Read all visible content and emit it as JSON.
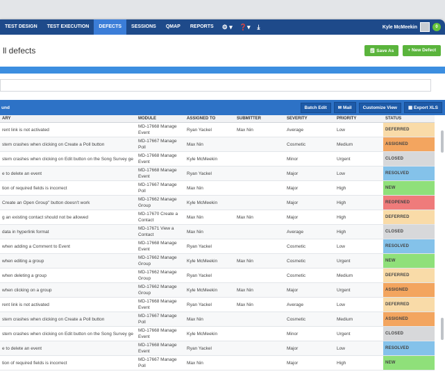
{
  "nav": {
    "items": [
      "TEST DESIGN",
      "TEST EXECUTION",
      "DEFECTS",
      "SESSIONS",
      "QMAP",
      "REPORTS"
    ],
    "active_index": 2,
    "user": "Kyle McMeekin",
    "notification_count": "0"
  },
  "page": {
    "title": "ll defects",
    "save_as": "Save As",
    "new_defect": "+  New Defect"
  },
  "toolbar": {
    "label": "und",
    "batch_edit": "Batch Edit",
    "mail": "Mail",
    "customize_view": "Customize View",
    "export_xls": "Export XLS"
  },
  "table": {
    "headers": [
      "ARY",
      "MODULE",
      "ASSIGNED TO",
      "SUBMITTER",
      "SEVERITY",
      "PRIORITY",
      "STATUS"
    ],
    "rows": [
      {
        "summary": "rent link is not activated",
        "module": "MD-17668 Manage Event",
        "assigned": "Ryan Yackel",
        "submitter": "Max Nin",
        "severity": "Average",
        "priority": "Low",
        "status": "DEFERRED"
      },
      {
        "summary": "stem crashes when clicking on Create a Poll button",
        "module": "MD-17667 Manage Poll",
        "assigned": "Max Nin",
        "submitter": "",
        "severity": "Cosmetic",
        "priority": "Medium",
        "status": "ASSIGNED"
      },
      {
        "summary": "stem crashes when clicking on Edit button on the Song Survey ge",
        "module": "MD-17668 Manage Event",
        "assigned": "Kyle McMeekin",
        "submitter": "",
        "severity": "Minor",
        "priority": "Urgent",
        "status": "CLOSED"
      },
      {
        "summary": "e to delete an event",
        "module": "MD-17668 Manage Event",
        "assigned": "Ryan Yackel",
        "submitter": "",
        "severity": "Major",
        "priority": "Low",
        "status": "RESOLVED"
      },
      {
        "summary": "tion of required fields is incorrect",
        "module": "MD-17667 Manage Poll",
        "assigned": "Max Nin",
        "submitter": "",
        "severity": "Major",
        "priority": "High",
        "status": "NEW"
      },
      {
        "summary": "Create an Open Group\" button doesn't work",
        "module": "MD-17662 Manage Group",
        "assigned": "Kyle McMeekin",
        "submitter": "",
        "severity": "Major",
        "priority": "High",
        "status": "REOPENED"
      },
      {
        "summary": "g an existing contact should not be allowed",
        "module": "MD-17670 Create a Contact",
        "assigned": "Max Nin",
        "submitter": "Max Nin",
        "severity": "Major",
        "priority": "High",
        "status": "DEFERRED"
      },
      {
        "summary": "data in hyperlink format",
        "module": "MD-17671 View a Contact",
        "assigned": "Max Nin",
        "submitter": "",
        "severity": "Average",
        "priority": "High",
        "status": "CLOSED"
      },
      {
        "summary": "when adding a Comment to Event",
        "module": "MD-17668 Manage Event",
        "assigned": "Ryan Yackel",
        "submitter": "",
        "severity": "Cosmetic",
        "priority": "Low",
        "status": "RESOLVED"
      },
      {
        "summary": "when editing a group",
        "module": "MD-17662 Manage Group",
        "assigned": "Kyle McMeekin",
        "submitter": "Max Nin",
        "severity": "Cosmetic",
        "priority": "Urgent",
        "status": "NEW"
      },
      {
        "summary": "when deleting a group",
        "module": "MD-17662 Manage Group",
        "assigned": "Ryan Yackel",
        "submitter": "",
        "severity": "Cosmetic",
        "priority": "Medium",
        "status": "DEFERRED"
      },
      {
        "summary": "when clicking on a group",
        "module": "MD-17662 Manage Group",
        "assigned": "Kyle McMeekin",
        "submitter": "Max Nin",
        "severity": "Major",
        "priority": "Urgent",
        "status": "ASSIGNED"
      },
      {
        "summary": "rent link is not activated",
        "module": "MD-17668 Manage Event",
        "assigned": "Ryan Yackel",
        "submitter": "Max Nin",
        "severity": "Average",
        "priority": "Low",
        "status": "DEFERRED"
      },
      {
        "summary": "stem crashes when clicking on Create a Poll button",
        "module": "MD-17667 Manage Poll",
        "assigned": "Max Nin",
        "submitter": "",
        "severity": "Cosmetic",
        "priority": "Medium",
        "status": "ASSIGNED"
      },
      {
        "summary": "stem crashes when clicking on Edit button on the Song Survey ge",
        "module": "MD-17668 Manage Event",
        "assigned": "Kyle McMeekin",
        "submitter": "",
        "severity": "Minor",
        "priority": "Urgent",
        "status": "CLOSED"
      },
      {
        "summary": "e to delete an event",
        "module": "MD-17668 Manage Event",
        "assigned": "Ryan Yackel",
        "submitter": "",
        "severity": "Major",
        "priority": "Low",
        "status": "RESOLVED"
      },
      {
        "summary": "tion of required fields is incorrect",
        "module": "MD-17667 Manage Poll",
        "assigned": "Max Nin",
        "submitter": "",
        "severity": "Major",
        "priority": "High",
        "status": "NEW"
      }
    ]
  },
  "status_colors": {
    "DEFERRED": "#f9dba8",
    "ASSIGNED": "#f3a55f",
    "CLOSED": "#d7d8da",
    "RESOLVED": "#84c2ea",
    "NEW": "#8fe07a",
    "REOPENED": "#ef7b7b"
  }
}
